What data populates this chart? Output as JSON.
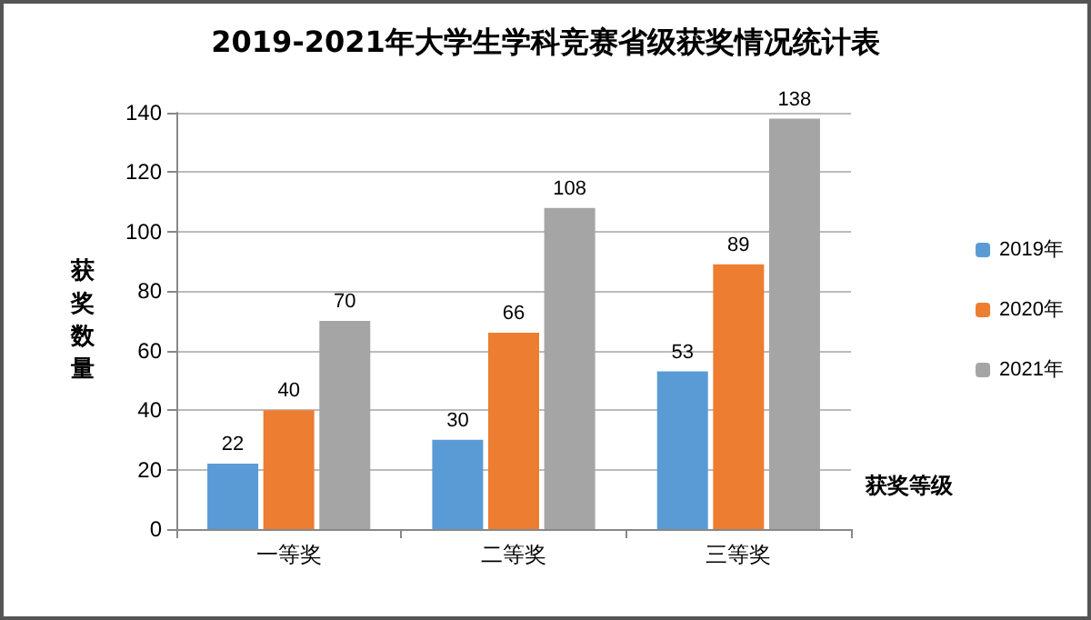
{
  "chart_data": {
    "type": "bar",
    "title": "2019-2021年大学生学科竞赛省级获奖情况统计表",
    "xlabel": "获奖等级",
    "ylabel": "获奖数量",
    "categories": [
      "一等奖",
      "二等奖",
      "三等奖"
    ],
    "series": [
      {
        "name": "2019年",
        "color": "#5b9bd5",
        "values": [
          22,
          30,
          53
        ]
      },
      {
        "name": "2020年",
        "color": "#ed7d31",
        "values": [
          40,
          66,
          89
        ]
      },
      {
        "name": "2021年",
        "color": "#a5a5a5",
        "values": [
          70,
          108,
          138
        ]
      }
    ],
    "ylim": [
      0,
      140
    ],
    "yticks": [
      0,
      20,
      40,
      60,
      80,
      100,
      120,
      140
    ],
    "grid": "y",
    "legend": "right",
    "data_labels": true
  }
}
